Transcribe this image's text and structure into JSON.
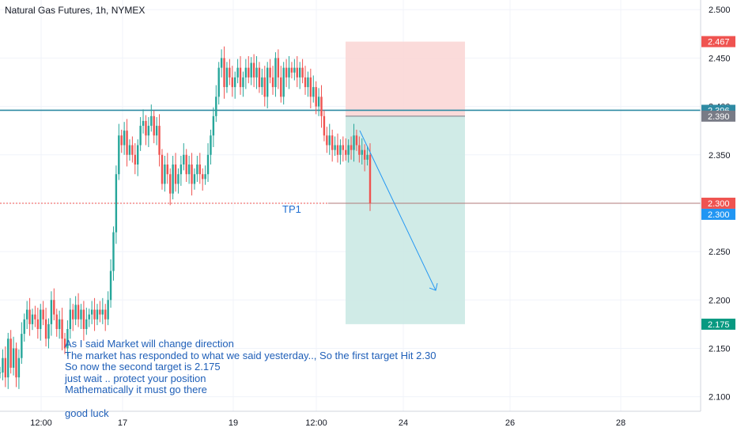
{
  "title": "Natural Gas Futures, 1h, NYMEX",
  "chart_data": {
    "type": "candlestick",
    "symbol": "Natural Gas Futures",
    "interval": "1h",
    "exchange": "NYMEX",
    "y_axis": {
      "min": 2.085,
      "max": 2.51,
      "ticks": [
        "2.500",
        "2.450",
        "2.400",
        "2.350",
        "2.300",
        "2.250",
        "2.200",
        "2.150",
        "2.100"
      ],
      "tick_values": [
        2.5,
        2.45,
        2.4,
        2.35,
        2.3,
        2.25,
        2.2,
        2.15,
        2.1
      ]
    },
    "x_axis": {
      "tick_labels": [
        "12:00",
        "17",
        "19",
        "12:00",
        "24",
        "26",
        "28"
      ]
    },
    "price_labels": [
      {
        "value": 2.467,
        "text": "2.467",
        "color": "#ef5350"
      },
      {
        "value": 2.396,
        "text": "2.396",
        "color": "#2e8aa3"
      },
      {
        "value": 2.39,
        "text": "2.390",
        "color": "#787b86"
      },
      {
        "value": 2.3,
        "text": "2.300",
        "color": "#ef5350"
      },
      {
        "value": 2.3,
        "text": "2.300",
        "color": "#2196f3"
      },
      {
        "value": 2.175,
        "text": "2.175",
        "color": "#089981"
      }
    ],
    "horizontal_lines": [
      {
        "value": 2.396,
        "style": "solid",
        "color": "#2e8aa3"
      },
      {
        "value": 2.3,
        "style": "dotted",
        "color": "#ef5350"
      }
    ],
    "position": {
      "type": "short",
      "entry": 2.39,
      "stop": 2.467,
      "target": 2.175
    },
    "annotations": {
      "tp1_label": "TP1",
      "note_lines": [
        "As I said Market will change direction",
        "The market has responded to what we said yesterday.., So the first target Hit 2.30",
        "So now the second target is 2.175",
        "just wait .. protect your position",
        "Mathematically it must go there",
        "",
        "good luck"
      ]
    },
    "candles_path": [
      2.125,
      2.14,
      2.12,
      2.16,
      2.13,
      2.15,
      2.12,
      2.14,
      2.165,
      2.18,
      2.19,
      2.175,
      2.185,
      2.18,
      2.17,
      2.19,
      2.18,
      2.16,
      2.175,
      2.2,
      2.185,
      2.17,
      2.18,
      2.16,
      2.15,
      2.17,
      2.19,
      2.18,
      2.195,
      2.18,
      2.19,
      2.17,
      2.18,
      2.185,
      2.19,
      2.18,
      2.19,
      2.185,
      2.19,
      2.18,
      2.2,
      2.23,
      2.27,
      2.33,
      2.37,
      2.36,
      2.375,
      2.35,
      2.36,
      2.35,
      2.34,
      2.36,
      2.38,
      2.385,
      2.37,
      2.38,
      2.39,
      2.37,
      2.38,
      2.35,
      2.32,
      2.34,
      2.33,
      2.31,
      2.34,
      2.32,
      2.33,
      2.34,
      2.35,
      2.33,
      2.34,
      2.32,
      2.33,
      2.34,
      2.33,
      2.325,
      2.33,
      2.35,
      2.37,
      2.39,
      2.41,
      2.44,
      2.45,
      2.42,
      2.44,
      2.43,
      2.42,
      2.43,
      2.44,
      2.42,
      2.43,
      2.44,
      2.43,
      2.445,
      2.43,
      2.44,
      2.42,
      2.43,
      2.41,
      2.44,
      2.43,
      2.42,
      2.45,
      2.43,
      2.41,
      2.44,
      2.43,
      2.44,
      2.435,
      2.44,
      2.43,
      2.44,
      2.43,
      2.42,
      2.43,
      2.41,
      2.42,
      2.4,
      2.41,
      2.39,
      2.37,
      2.36,
      2.37,
      2.355,
      2.36,
      2.35,
      2.36,
      2.355,
      2.35,
      2.36,
      2.355,
      2.37,
      2.36,
      2.35,
      2.355,
      2.345,
      2.35,
      2.3
    ]
  }
}
